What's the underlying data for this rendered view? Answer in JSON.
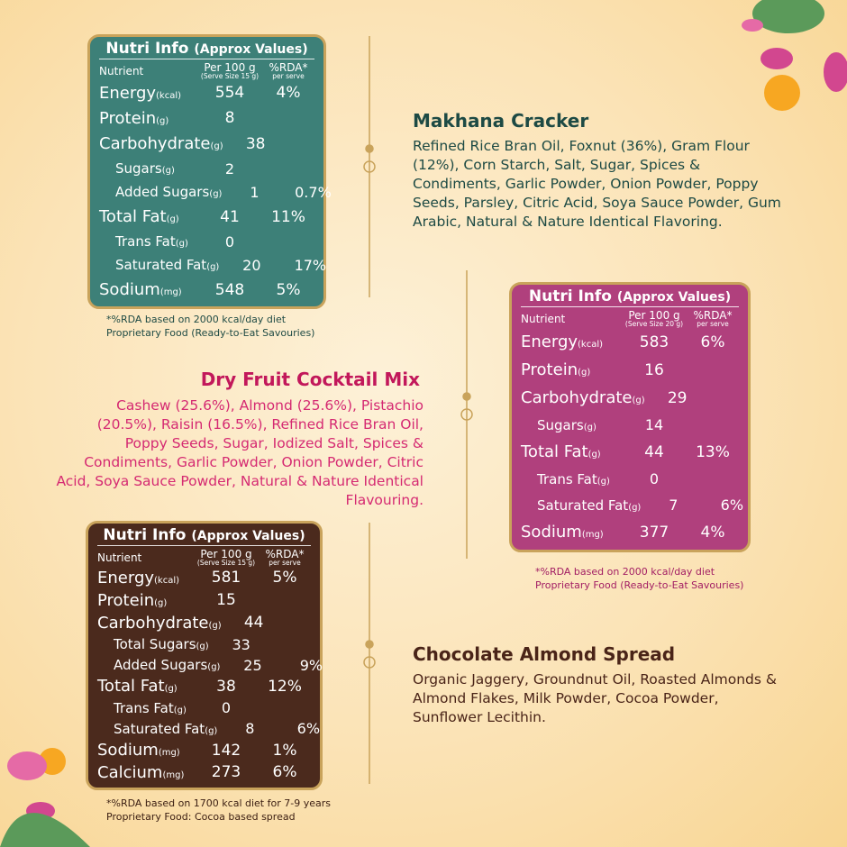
{
  "products": [
    {
      "name": "Makhana Cracker",
      "ingredients": "Refined Rice Bran Oil, Foxnut (36%), Gram Flour (12%), Corn Starch, Salt, Sugar, Spices & Condiments, Garlic Powder, Onion Powder, Poppy Seeds, Parsley, Citric Acid, Soya Sauce Powder, Gum Arabic, Natural & Nature Identical Flavoring.",
      "nutrition": {
        "title": "Nutri Info",
        "subtitle": "(Approx Values)",
        "columns": {
          "nutrient": "Nutrient",
          "per_100g": "Per 100 g",
          "serve_size": "(Serve Size 15 g)",
          "rda": "%RDA*",
          "per_serve": "per serve"
        },
        "rows": [
          {
            "nutrient": "Energy",
            "unit": "(kcal)",
            "per_100g": 554,
            "rda": "4%"
          },
          {
            "nutrient": "Protein",
            "unit": "(g)",
            "per_100g": 8
          },
          {
            "nutrient": "Carbohydrate",
            "unit": "(g)",
            "per_100g": 38,
            "sub_rows": [
              {
                "nutrient": "Sugars",
                "unit": "(g)",
                "per_100g": 2
              },
              {
                "nutrient": "Added Sugars",
                "unit": "(g)",
                "per_100g": 1,
                "rda": "0.7%"
              }
            ]
          },
          {
            "nutrient": "Total Fat",
            "unit": "(g)",
            "per_100g": 41,
            "rda": "11%",
            "sub_rows": [
              {
                "nutrient": "Trans Fat",
                "unit": "(g)",
                "per_100g": 0
              },
              {
                "nutrient": "Saturated Fat",
                "unit": "(g)",
                "per_100g": 20,
                "rda": "17%"
              }
            ]
          },
          {
            "nutrient": "Sodium",
            "unit": "(mg)",
            "per_100g": 548,
            "rda": "5%"
          }
        ],
        "footnotes": [
          "*%RDA based on 2000 kcal/day diet",
          "Proprietary Food (Ready-to-Eat Savouries)"
        ]
      }
    },
    {
      "name": "Dry Fruit Cocktail Mix",
      "ingredients": "Cashew (25.6%), Almond (25.6%), Pistachio (20.5%), Raisin (16.5%), Refined Rice Bran Oil, Poppy Seeds, Sugar, Iodized Salt, Spices & Condiments, Garlic Powder, Onion Powder, Citric Acid, Soya Sauce Powder, Natural & Nature Identical Flavouring.",
      "nutrition": {
        "title": "Nutri Info",
        "subtitle": "(Approx Values)",
        "columns": {
          "nutrient": "Nutrient",
          "per_100g": "Per 100 g",
          "serve_size": "(Serve Size 20 g)",
          "rda": "%RDA*",
          "per_serve": "per serve"
        },
        "rows": [
          {
            "nutrient": "Energy",
            "unit": "(kcal)",
            "per_100g": 583,
            "rda": "6%"
          },
          {
            "nutrient": "Protein",
            "unit": "(g)",
            "per_100g": 16
          },
          {
            "nutrient": "Carbohydrate",
            "unit": "(g)",
            "per_100g": 29,
            "sub_rows": [
              {
                "nutrient": "Sugars",
                "unit": "(g)",
                "per_100g": 14
              }
            ]
          },
          {
            "nutrient": "Total Fat",
            "unit": "(g)",
            "per_100g": 44,
            "rda": "13%",
            "sub_rows": [
              {
                "nutrient": "Trans Fat",
                "unit": "(g)",
                "per_100g": 0
              },
              {
                "nutrient": "Saturated Fat",
                "unit": "(g)",
                "per_100g": 7,
                "rda": "6%"
              }
            ]
          },
          {
            "nutrient": "Sodium",
            "unit": "(mg)",
            "per_100g": 377,
            "rda": "4%"
          }
        ],
        "footnotes": [
          "*%RDA based on 2000 kcal/day diet",
          "Proprietary Food (Ready-to-Eat Savouries)"
        ]
      }
    },
    {
      "name": "Chocolate Almond Spread",
      "ingredients": "Organic Jaggery, Groundnut Oil, Roasted Almonds & Almond Flakes, Milk Powder, Cocoa Powder, Sunflower Lecithin.",
      "nutrition": {
        "title": "Nutri Info",
        "subtitle": "(Approx Values)",
        "columns": {
          "nutrient": "Nutrient",
          "per_100g": "Per 100 g",
          "serve_size": "(Serve Size 15 g)",
          "rda": "%RDA*",
          "per_serve": "per serve"
        },
        "rows": [
          {
            "nutrient": "Energy",
            "unit": "(kcal)",
            "per_100g": 581,
            "rda": "5%"
          },
          {
            "nutrient": "Protein",
            "unit": "(g)",
            "per_100g": 15
          },
          {
            "nutrient": "Carbohydrate",
            "unit": "(g)",
            "per_100g": 44,
            "sub_rows": [
              {
                "nutrient": "Total Sugars",
                "unit": "(g)",
                "per_100g": 33
              },
              {
                "nutrient": "Added Sugars",
                "unit": "(g)",
                "per_100g": 25,
                "rda": "9%"
              }
            ]
          },
          {
            "nutrient": "Total Fat",
            "unit": "(g)",
            "per_100g": 38,
            "rda": "12%",
            "sub_rows": [
              {
                "nutrient": "Trans Fat",
                "unit": "(g)",
                "per_100g": 0
              },
              {
                "nutrient": "Saturated Fat",
                "unit": "(g)",
                "per_100g": 8,
                "rda": "6%"
              }
            ]
          },
          {
            "nutrient": "Sodium",
            "unit": "(mg)",
            "per_100g": 142,
            "rda": "1%"
          },
          {
            "nutrient": "Calcium",
            "unit": "(mg)",
            "per_100g": 273,
            "rda": "6%"
          }
        ],
        "footnotes": [
          "*%RDA based on 1700 kcal diet for 7-9 years",
          "Proprietary Food: Cocoa based spread"
        ]
      }
    }
  ]
}
